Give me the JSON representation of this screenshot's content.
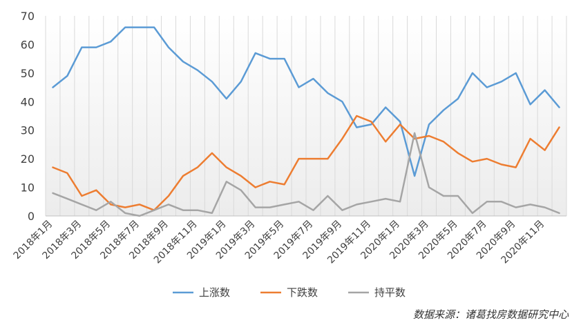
{
  "chart_data": {
    "type": "line",
    "categories": [
      "2018年1月",
      "2018年2月",
      "2018年3月",
      "2018年4月",
      "2018年5月",
      "2018年6月",
      "2018年7月",
      "2018年8月",
      "2018年9月",
      "2018年10月",
      "2018年11月",
      "2018年12月",
      "2019年1月",
      "2019年2月",
      "2019年3月",
      "2019年4月",
      "2019年5月",
      "2019年6月",
      "2019年7月",
      "2019年8月",
      "2019年9月",
      "2019年10月",
      "2019年11月",
      "2019年12月",
      "2020年1月",
      "2020年2月",
      "2020年3月",
      "2020年4月",
      "2020年5月",
      "2020年6月",
      "2020年7月",
      "2020年8月",
      "2020年9月",
      "2020年10月",
      "2020年11月",
      "2020年12月"
    ],
    "tick_labels": [
      "2018年1月",
      "2018年3月",
      "2018年5月",
      "2018年7月",
      "2018年9月",
      "2018年11月",
      "2019年1月",
      "2019年3月",
      "2019年5月",
      "2019年7月",
      "2019年9月",
      "2019年11月",
      "2020年1月",
      "2020年3月",
      "2020年5月",
      "2020年7月",
      "2020年9月",
      "2020年11月"
    ],
    "series": [
      {
        "name": "上涨数",
        "color": "#5B9BD5",
        "values": [
          45,
          49,
          59,
          59,
          61,
          66,
          66,
          66,
          59,
          54,
          51,
          47,
          41,
          47,
          57,
          55,
          55,
          45,
          48,
          43,
          40,
          31,
          32,
          38,
          33,
          14,
          32,
          37,
          41,
          50,
          45,
          47,
          50,
          39,
          44,
          38
        ]
      },
      {
        "name": "下跌数",
        "color": "#ED7D31",
        "values": [
          17,
          15,
          7,
          9,
          4,
          3,
          4,
          2,
          7,
          14,
          17,
          22,
          17,
          14,
          10,
          12,
          11,
          20,
          20,
          20,
          27,
          35,
          33,
          26,
          32,
          27,
          28,
          26,
          22,
          19,
          20,
          18,
          17,
          27,
          23,
          31
        ]
      },
      {
        "name": "持平数",
        "color": "#A5A5A5",
        "values": [
          8,
          6,
          4,
          2,
          5,
          1,
          0,
          2,
          4,
          2,
          2,
          1,
          12,
          9,
          3,
          3,
          4,
          5,
          2,
          7,
          2,
          4,
          5,
          6,
          5,
          29,
          10,
          7,
          7,
          1,
          5,
          5,
          3,
          4,
          3,
          1
        ]
      }
    ],
    "yticks": [
      0,
      10,
      20,
      30,
      40,
      50,
      60,
      70
    ],
    "ylim": [
      0,
      70
    ],
    "grid": "vertical",
    "legend_position": "bottom"
  },
  "source_text": "数据来源：诸葛找房数据研究中心"
}
